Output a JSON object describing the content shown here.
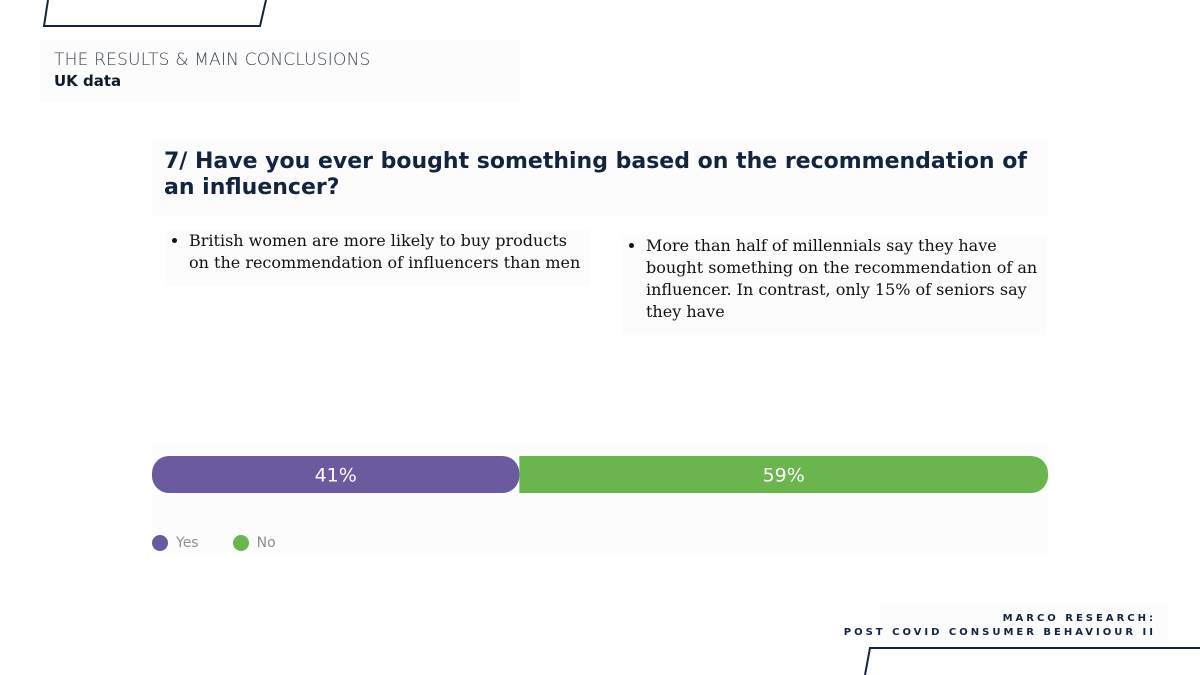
{
  "header": {
    "section_label": "THE RESULTS & MAIN CONCLUSIONS",
    "section_sub": "UK data"
  },
  "question": "7/ Have you ever bought something based on the recommendation of an influencer?",
  "notes": [
    "British women are more likely to buy products on the recommendation of influencers than men",
    "More than half of millennials say they have bought something on the recommendation of an influencer. In contrast, only 15% of seniors say they have"
  ],
  "footer": {
    "line1": "MARCO RESEARCH:",
    "line2": "POST COVID CONSUMER BEHAVIOUR II"
  },
  "colors": {
    "navy": "#13243f",
    "yes": "#6b5a9e",
    "no": "#6ab54e"
  },
  "chart_data": {
    "type": "bar",
    "orientation": "horizontal-stacked",
    "categories": [
      "Yes",
      "No"
    ],
    "values": [
      41,
      59
    ],
    "value_labels": [
      "41%",
      "59%"
    ],
    "colors": [
      "#6b5a9e",
      "#6ab54e"
    ],
    "legend": [
      "Yes",
      "No"
    ],
    "legend_placement": "bottom-left",
    "xlim": [
      0,
      100
    ],
    "grid": false
  }
}
